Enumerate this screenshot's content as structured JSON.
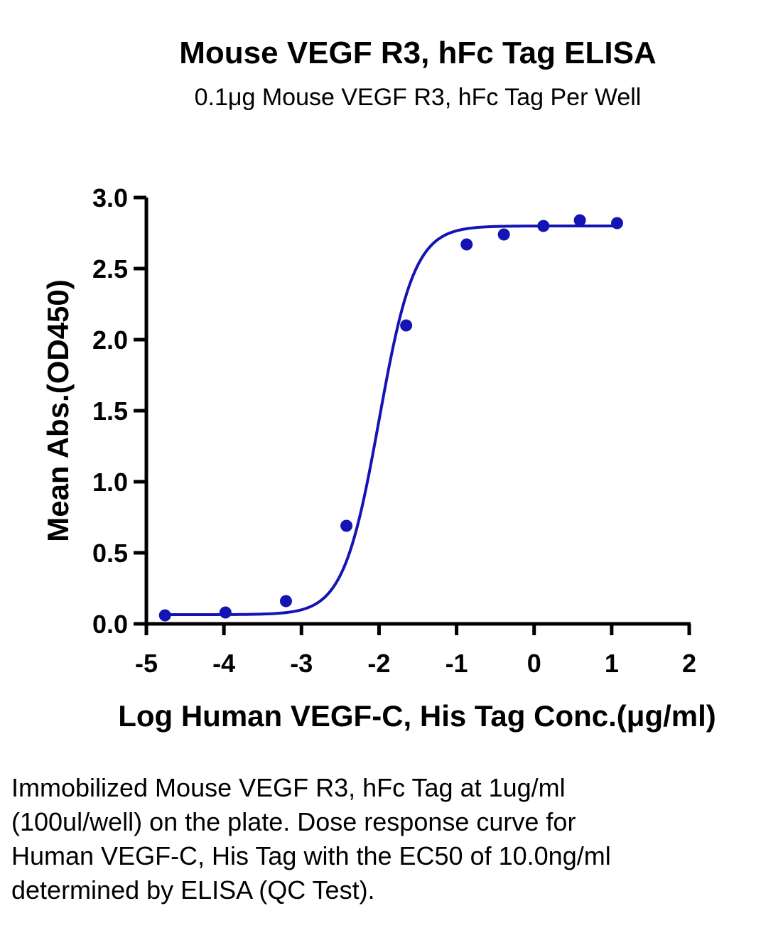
{
  "title": "Mouse VEGF R3, hFc Tag ELISA",
  "subtitle": "0.1μg Mouse VEGF R3, hFc Tag Per Well",
  "caption": "Immobilized Mouse VEGF R3, hFc Tag at 1ug/ml (100ul/well) on the plate. Dose response curve for Human VEGF-C, His Tag with the EC50 of 10.0ng/ml determined by ELISA (QC Test).",
  "colors": {
    "series": "#1414b4",
    "axis": "#000000"
  },
  "chart_data": {
    "type": "scatter",
    "xlabel": "Log Human VEGF-C, His Tag Conc.(μg/ml)",
    "ylabel": "Mean Abs.(OD450)",
    "xlim": [
      -5,
      2
    ],
    "ylim": [
      0,
      3
    ],
    "xticks": [
      "-5",
      "-4",
      "-3",
      "-2",
      "-1",
      "0",
      "1",
      "2"
    ],
    "yticks": [
      "0.0",
      "0.5",
      "1.0",
      "1.5",
      "2.0",
      "2.5",
      "3.0"
    ],
    "grid": false,
    "series": [
      {
        "points": [
          {
            "x": -4.76,
            "y": 0.06
          },
          {
            "x": -3.98,
            "y": 0.08
          },
          {
            "x": -3.2,
            "y": 0.16
          },
          {
            "x": -2.42,
            "y": 0.69
          },
          {
            "x": -1.65,
            "y": 2.1
          },
          {
            "x": -0.87,
            "y": 2.67
          },
          {
            "x": -0.39,
            "y": 2.74
          },
          {
            "x": 0.12,
            "y": 2.8
          },
          {
            "x": 0.59,
            "y": 2.84
          },
          {
            "x": 1.07,
            "y": 2.82
          }
        ],
        "fit": {
          "model": "4PL",
          "bottom": 0.065,
          "top": 2.8,
          "log_ec50": -2.0,
          "hill": 1.9
        }
      }
    ]
  }
}
